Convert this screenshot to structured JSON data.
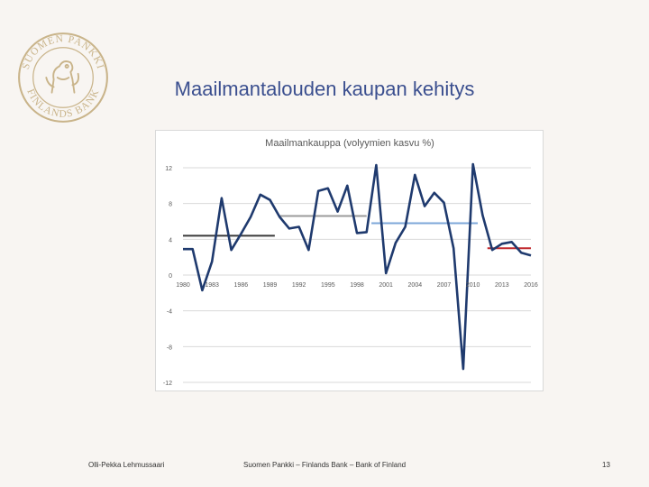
{
  "slide": {
    "title": "Maailmantalouden kaupan kehitys",
    "footer_author": "Olli-Pekka Lehmussaari",
    "footer_center": "Suomen Pankki – Finlands Bank – Bank of Finland",
    "page_number": "13"
  },
  "logo": {
    "text_top": "SUOMEN PANKKI",
    "text_bottom": "FINLANDS BANK",
    "color": "#c9b48a"
  },
  "chart_data": {
    "type": "line",
    "title": "Maailmankauppa (volyymien kasvu %)",
    "xlabel": "",
    "ylabel": "",
    "xlim": [
      1980,
      2016
    ],
    "ylim": [
      -12,
      12
    ],
    "yticks": [
      12,
      8,
      4,
      0,
      -4,
      -8,
      -12
    ],
    "xticks": [
      1980,
      1983,
      1986,
      1989,
      1992,
      1995,
      1998,
      2001,
      2004,
      2007,
      2010,
      2013,
      2016
    ],
    "xtick_labels": [
      "1980",
      "1983",
      "1986",
      "1989",
      "1992",
      "1995",
      "1998",
      "2001",
      "2004",
      "2007",
      "2010",
      "2013",
      "2016"
    ],
    "grid": "horizontal",
    "legend": "none",
    "series": [
      {
        "color": "#1f3a6e",
        "x": [
          1980,
          1981,
          1982,
          1983,
          1984,
          1985,
          1986,
          1987,
          1988,
          1989,
          1990,
          1991,
          1992,
          1993,
          1994,
          1995,
          1996,
          1997,
          1998,
          1999,
          2000,
          2001,
          2002,
          2003,
          2004,
          2005,
          2006,
          2007,
          2008,
          2009,
          2010,
          2011,
          2012,
          2013,
          2014,
          2015,
          2016
        ],
        "values": [
          2.9,
          2.9,
          -1.7,
          1.5,
          8.6,
          2.8,
          4.6,
          6.5,
          9.0,
          8.4,
          6.5,
          5.2,
          5.4,
          2.8,
          9.4,
          9.7,
          7.1,
          10.0,
          4.7,
          4.8,
          12.3,
          0.2,
          3.6,
          5.4,
          11.2,
          7.7,
          9.2,
          8.1,
          3.0,
          -10.5,
          12.4,
          6.7,
          2.8,
          3.5,
          3.7,
          2.5,
          2.2
        ]
      }
    ],
    "average_lines": [
      {
        "x": [
          1980,
          1989.5
        ],
        "value": 4.4,
        "color": "#3a3a3a"
      },
      {
        "x": [
          1990,
          1999
        ],
        "value": 6.6,
        "color": "#9b9b9b"
      },
      {
        "x": [
          1999.5,
          2010.5
        ],
        "value": 5.8,
        "color": "#7da7d9"
      },
      {
        "x": [
          2011.5,
          2016
        ],
        "value": 3.0,
        "color": "#c0282d"
      }
    ]
  }
}
